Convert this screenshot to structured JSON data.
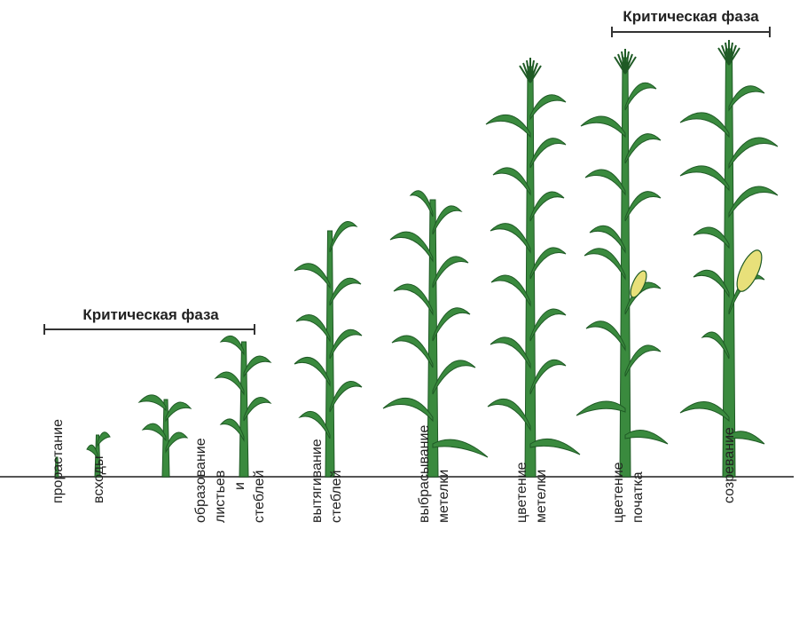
{
  "critical_phases": [
    {
      "label": "Критическая фаза"
    },
    {
      "label": "Критическая фаза"
    }
  ],
  "stages": [
    {
      "label": "прорастание"
    },
    {
      "label": "всходы"
    },
    {
      "label": "образование\nлистьев и стеблей"
    },
    {
      "label": "вытягивание\nстеблей"
    },
    {
      "label": "выбрасывание\nметелки"
    },
    {
      "label": "цветение\nметелки"
    },
    {
      "label": "цветение\nпочатка"
    },
    {
      "label": "созревание"
    }
  ],
  "colors": {
    "leaf": "#3a8a3e",
    "leaf_outline": "#1f5a25",
    "cob": "#e8e07a",
    "ground": "#555555",
    "bracket": "#333333"
  }
}
